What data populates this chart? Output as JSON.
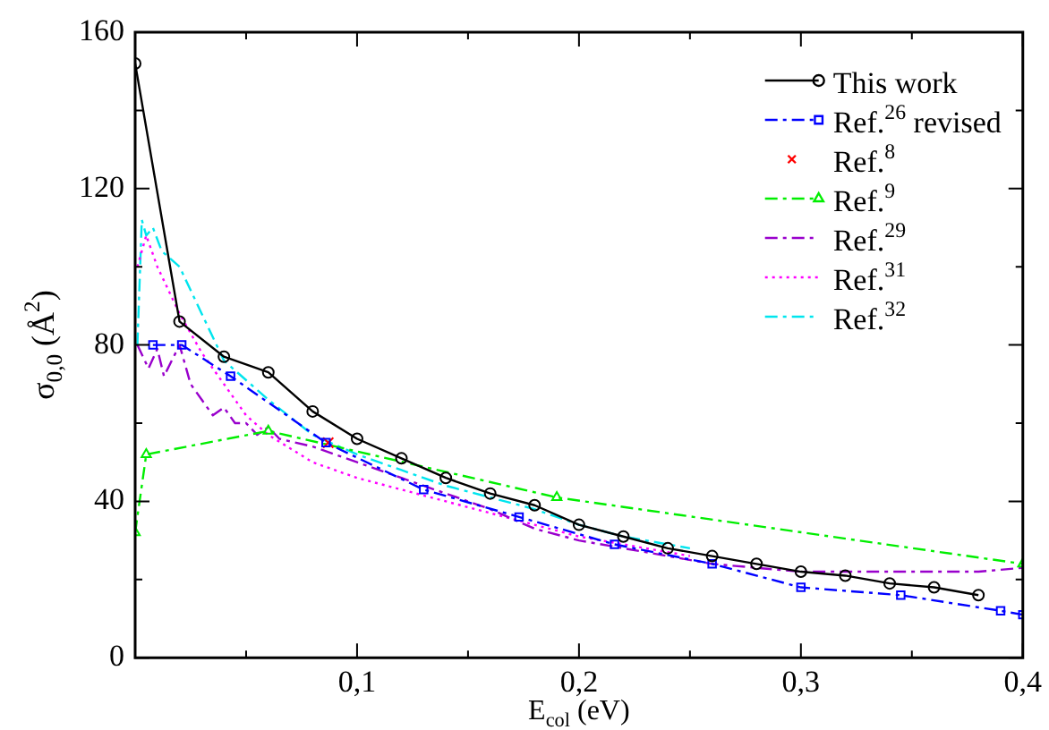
{
  "chart_data": {
    "type": "line",
    "xlabel": "E$_{col}$ (eV)",
    "ylabel": "σ$_{0,0}$ (Å$^{2}$)",
    "xlim": [
      0,
      0.4
    ],
    "ylim": [
      0,
      160
    ],
    "xticks": [
      {
        "value": 0,
        "label": null
      },
      {
        "value": 0.05,
        "label": null
      },
      {
        "value": 0.1,
        "label": "0,1"
      },
      {
        "value": 0.15,
        "label": null
      },
      {
        "value": 0.2,
        "label": "0,2"
      },
      {
        "value": 0.25,
        "label": null
      },
      {
        "value": 0.3,
        "label": "0,3"
      },
      {
        "value": 0.35,
        "label": null
      },
      {
        "value": 0.4,
        "label": "0,4"
      }
    ],
    "yticks": [
      0,
      {
        "value": 20,
        "label": null
      },
      40,
      {
        "value": 60,
        "label": null
      },
      80,
      {
        "value": 100,
        "label": null
      },
      120,
      {
        "value": 140,
        "label": null
      },
      160
    ],
    "grid": false,
    "legend": "top right",
    "series": [
      {
        "name": "This work",
        "type": "line",
        "color": "#000000",
        "marker": "circle",
        "line_style": "solid",
        "x": [
          0,
          0.02,
          0.04,
          0.06,
          0.08,
          0.1,
          0.12,
          0.14,
          0.16,
          0.18,
          0.2,
          0.22,
          0.24,
          0.26,
          0.28,
          0.3,
          0.32,
          0.34,
          0.36,
          0.38
        ],
        "values": [
          152,
          86,
          77,
          73,
          63,
          56,
          51,
          46,
          42,
          39,
          34,
          31,
          28,
          26,
          24,
          22,
          21,
          19,
          18,
          16
        ]
      },
      {
        "name": "Ref.$^{26}$ revised",
        "type": "line",
        "color": "#0000ff",
        "marker": "square",
        "line_style": "dashed",
        "x": [
          0.008,
          0.021,
          0.043,
          0.086,
          0.13,
          0.173,
          0.216,
          0.26,
          0.3,
          0.345,
          0.39,
          0.4
        ],
        "values": [
          80,
          80,
          72,
          55,
          43,
          36,
          29,
          24,
          18,
          16,
          12,
          11
        ]
      },
      {
        "name": "Ref.$^{8}$",
        "type": "scatter",
        "color": "#ff0000",
        "marker": "cross",
        "x": [
          0.087
        ],
        "values": [
          55
        ]
      },
      {
        "name": "Ref.$^{9}$",
        "type": "line",
        "color": "#00ee00",
        "marker": "triangle",
        "line_style": "dashed",
        "x": [
          0,
          0.005,
          0.06,
          0.19,
          0.4
        ],
        "values": [
          32,
          52,
          58,
          41,
          24
        ]
      },
      {
        "name": "Ref.$^{29}$",
        "type": "line",
        "color": "#9900cc",
        "marker": "none",
        "line_style": "dashed",
        "x": [
          0.001,
          0.006,
          0.01,
          0.013,
          0.02,
          0.025,
          0.03,
          0.035,
          0.04,
          0.045,
          0.05,
          0.055,
          0.06,
          0.065,
          0.08,
          0.1,
          0.12,
          0.14,
          0.16,
          0.18,
          0.2,
          0.22,
          0.24,
          0.26,
          0.28,
          0.3,
          0.32,
          0.34,
          0.36,
          0.38,
          0.4
        ],
        "values": [
          80,
          74,
          79,
          72,
          80,
          70,
          66,
          62,
          64,
          60,
          60,
          57,
          59,
          56,
          54,
          50,
          46,
          42,
          38,
          33,
          30,
          28,
          26,
          24,
          23,
          22,
          22,
          22,
          22,
          22,
          23
        ]
      },
      {
        "name": "Ref.$^{31}$",
        "type": "line",
        "color": "#ff00ff",
        "marker": "none",
        "line_style": "dotted",
        "x": [
          0.001,
          0.005,
          0.01,
          0.02,
          0.03,
          0.04,
          0.05,
          0.06,
          0.08,
          0.1,
          0.12,
          0.14,
          0.16,
          0.18,
          0.2,
          0.22,
          0.25
        ],
        "values": [
          100,
          108,
          100,
          88,
          78,
          70,
          62,
          57,
          50,
          46,
          43,
          40,
          37,
          34,
          31,
          29,
          26
        ]
      },
      {
        "name": "Ref.$^{32}$",
        "type": "line",
        "color": "#00e5ee",
        "marker": "none",
        "line_style": "dashed",
        "x": [
          0.001,
          0.003,
          0.005,
          0.008,
          0.012,
          0.02,
          0.03,
          0.04,
          0.06,
          0.08,
          0.1,
          0.12,
          0.14,
          0.16,
          0.18,
          0.2,
          0.22,
          0.24,
          0.25
        ],
        "values": [
          80,
          112,
          108,
          110,
          104,
          100,
          88,
          76,
          66,
          57,
          52,
          48,
          44,
          41,
          38,
          34,
          31,
          29,
          28
        ]
      }
    ]
  }
}
